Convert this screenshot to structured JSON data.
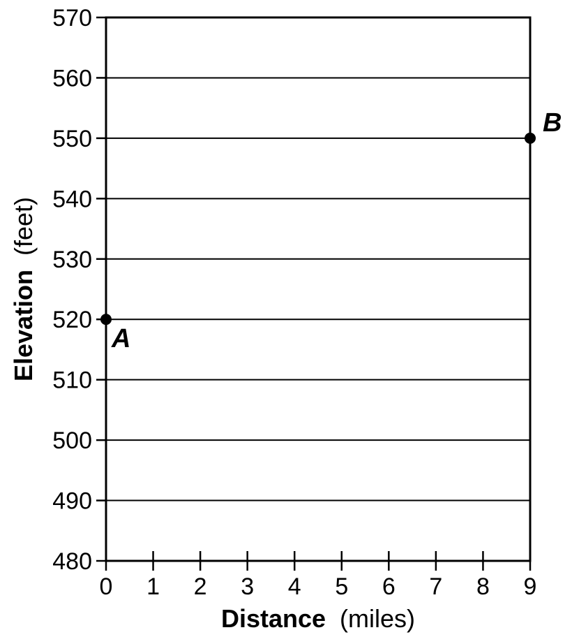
{
  "chart_data": {
    "type": "scatter",
    "title": "",
    "xlabel": {
      "main": "Distance",
      "unit": "(miles)"
    },
    "ylabel": {
      "main": "Elevation",
      "unit": "(feet)"
    },
    "xlim": [
      0,
      9
    ],
    "ylim": [
      480,
      570
    ],
    "x_ticks": [
      0,
      1,
      2,
      3,
      4,
      5,
      6,
      7,
      8,
      9
    ],
    "y_ticks": [
      480,
      490,
      500,
      510,
      520,
      530,
      540,
      550,
      560,
      570
    ],
    "grid": "horizontal",
    "points": [
      {
        "label": "A",
        "x": 0,
        "y": 520
      },
      {
        "label": "B",
        "x": 9,
        "y": 550
      }
    ]
  }
}
